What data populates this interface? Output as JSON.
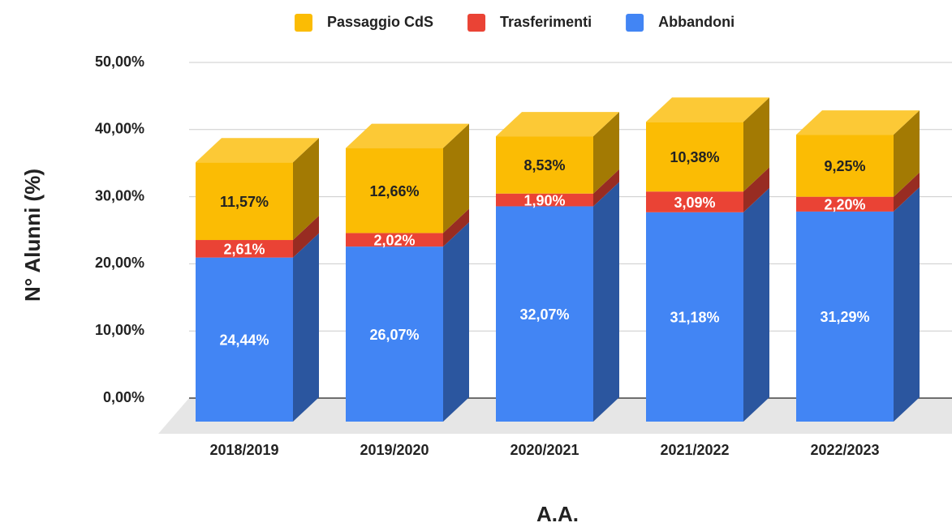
{
  "chart_data": {
    "type": "bar3d_stacked",
    "xlabel": "A.A.",
    "ylabel": "N° Alunni (%)",
    "categories": [
      "2018/2019",
      "2019/2020",
      "2020/2021",
      "2021/2022",
      "2022/2023"
    ],
    "series": [
      {
        "name": "Abbandoni",
        "color": "#4285f4",
        "values": [
          24.44,
          26.07,
          32.07,
          31.18,
          31.29
        ],
        "value_labels": [
          "24,44%",
          "26,07%",
          "32,07%",
          "31,18%",
          "31,29%"
        ]
      },
      {
        "name": "Trasferimenti",
        "color": "#ea4335",
        "values": [
          2.61,
          2.02,
          1.9,
          3.09,
          2.2
        ],
        "value_labels": [
          "2,61%",
          "2,02%",
          "1,90%",
          "3,09%",
          "2,20%"
        ]
      },
      {
        "name": "Passaggio CdS",
        "color": "#fbbc04",
        "values": [
          11.57,
          12.66,
          8.53,
          10.38,
          9.25
        ],
        "value_labels": [
          "11,57%",
          "12,66%",
          "8,53%",
          "10,38%",
          "9,25%"
        ]
      }
    ],
    "ylim": [
      0,
      50
    ],
    "yticks": [
      {
        "value": 0,
        "label": "0,00%"
      },
      {
        "value": 10,
        "label": "10,00%"
      },
      {
        "value": 20,
        "label": "20,00%"
      },
      {
        "value": 30,
        "label": "30,00%"
      },
      {
        "value": 40,
        "label": "40,00%"
      },
      {
        "value": 50,
        "label": "50,00%"
      }
    ],
    "grid": true,
    "legend": "top"
  }
}
